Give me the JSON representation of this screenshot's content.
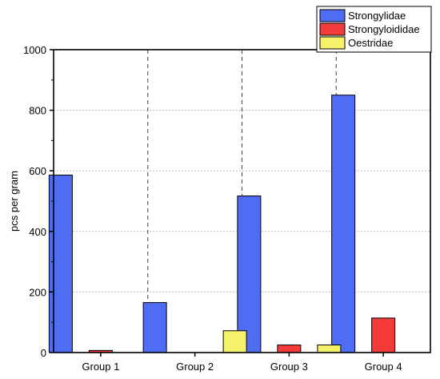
{
  "chart_data": {
    "type": "bar",
    "categories": [
      "Group 1",
      "Group 2",
      "Group 3",
      "Group 4"
    ],
    "series": [
      {
        "name": "Strongylidae",
        "color": "#4f6cf5",
        "values": [
          586,
          165,
          517,
          850
        ]
      },
      {
        "name": "Strongyloididae",
        "color": "#f53a3a",
        "values": [
          7,
          0,
          25,
          114
        ]
      },
      {
        "name": "Oestridae",
        "color": "#f5f26a",
        "values": [
          0,
          72,
          25,
          0
        ]
      }
    ],
    "ylabel": "pcs per gram",
    "xlabel": "",
    "title": "",
    "ylim": [
      0,
      1000
    ],
    "yticks": [
      0,
      200,
      400,
      600,
      800,
      1000
    ],
    "grid": "horizontal dotted",
    "group_separators": "dashed vertical",
    "legend_position": "top-right"
  }
}
